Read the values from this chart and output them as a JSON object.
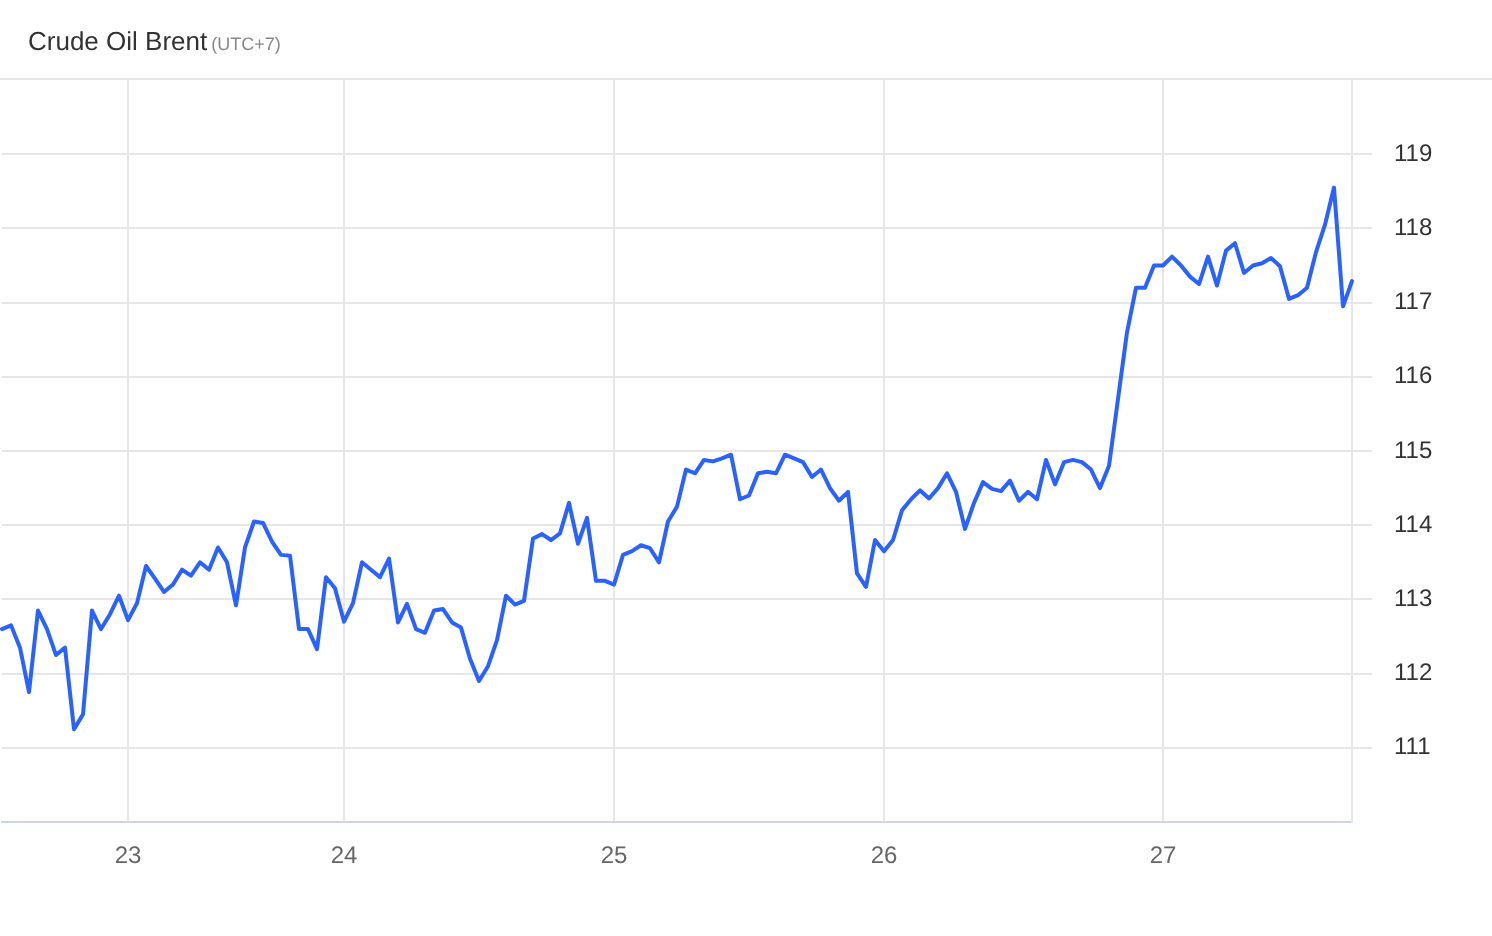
{
  "chart_data": {
    "type": "line",
    "title": "Crude Oil Brent",
    "subtitle": "(UTC+7)",
    "categories": [
      null,
      null,
      null,
      null,
      null,
      null,
      null,
      null,
      null,
      null,
      null,
      null,
      null,
      null,
      "23",
      null,
      null,
      null,
      null,
      null,
      null,
      null,
      null,
      null,
      null,
      null,
      null,
      null,
      null,
      null,
      null,
      null,
      null,
      null,
      null,
      null,
      null,
      null,
      "24",
      null,
      null,
      null,
      null,
      null,
      null,
      null,
      null,
      null,
      null,
      null,
      null,
      null,
      null,
      null,
      null,
      null,
      null,
      null,
      null,
      null,
      null,
      null,
      null,
      null,
      null,
      null,
      null,
      null,
      "25",
      null,
      null,
      null,
      null,
      null,
      null,
      null,
      null,
      null,
      null,
      null,
      null,
      null,
      null,
      null,
      null,
      null,
      null,
      null,
      null,
      null,
      null,
      null,
      null,
      null,
      null,
      null,
      null,
      null,
      "26",
      null,
      null,
      null,
      null,
      null,
      null,
      null,
      null,
      null,
      null,
      null,
      null,
      null,
      null,
      null,
      null,
      null,
      null,
      null,
      null,
      null,
      null,
      null,
      null,
      null,
      null,
      null,
      null,
      null,
      null,
      "27",
      null,
      null,
      null,
      null,
      null,
      null,
      null,
      null,
      null,
      null,
      null,
      null,
      null,
      null,
      null,
      null,
      null,
      null,
      null,
      null,
      null
    ],
    "series": [
      {
        "color": "#2962ff",
        "values": [
          112.6,
          112.65,
          112.35,
          111.75,
          112.85,
          112.6,
          112.25,
          112.35,
          111.25,
          111.45,
          112.85,
          112.6,
          112.8,
          113.05,
          112.72,
          112.95,
          113.45,
          113.28,
          113.1,
          113.2,
          113.4,
          113.32,
          113.5,
          113.4,
          113.7,
          113.5,
          112.92,
          113.7,
          114.05,
          114.03,
          113.78,
          113.6,
          113.59,
          112.6,
          112.6,
          112.33,
          113.3,
          113.15,
          112.7,
          112.95,
          113.5,
          113.4,
          113.3,
          113.55,
          112.69,
          112.94,
          112.6,
          112.55,
          112.85,
          112.87,
          112.69,
          112.62,
          112.2,
          111.9,
          112.1,
          112.45,
          113.05,
          112.93,
          112.98,
          113.82,
          113.88,
          113.8,
          113.89,
          114.3,
          113.75,
          114.1,
          113.25,
          113.25,
          113.2,
          113.6,
          113.65,
          113.73,
          113.69,
          113.5,
          114.05,
          114.25,
          114.75,
          114.7,
          114.88,
          114.86,
          114.9,
          114.95,
          114.35,
          114.4,
          114.7,
          114.72,
          114.7,
          114.95,
          114.9,
          114.85,
          114.65,
          114.75,
          114.5,
          114.33,
          114.45,
          113.35,
          113.17,
          113.8,
          113.65,
          113.8,
          114.2,
          114.35,
          114.47,
          114.36,
          114.5,
          114.7,
          114.45,
          113.95,
          114.3,
          114.58,
          114.49,
          114.46,
          114.6,
          114.33,
          114.45,
          114.35,
          114.88,
          114.55,
          114.85,
          114.88,
          114.85,
          114.75,
          114.5,
          114.8,
          115.7,
          116.6,
          117.2,
          117.2,
          117.5,
          117.5,
          117.62,
          117.5,
          117.35,
          117.25,
          117.62,
          117.23,
          117.7,
          117.8,
          117.4,
          117.5,
          117.53,
          117.6,
          117.49,
          117.05,
          117.1,
          117.2,
          117.68,
          118.05,
          118.55,
          116.95,
          117.29
        ]
      }
    ],
    "ylim": [
      110,
      120
    ],
    "yticks": [
      111,
      112,
      113,
      114,
      115,
      116,
      117,
      118,
      119
    ],
    "grid": true
  }
}
